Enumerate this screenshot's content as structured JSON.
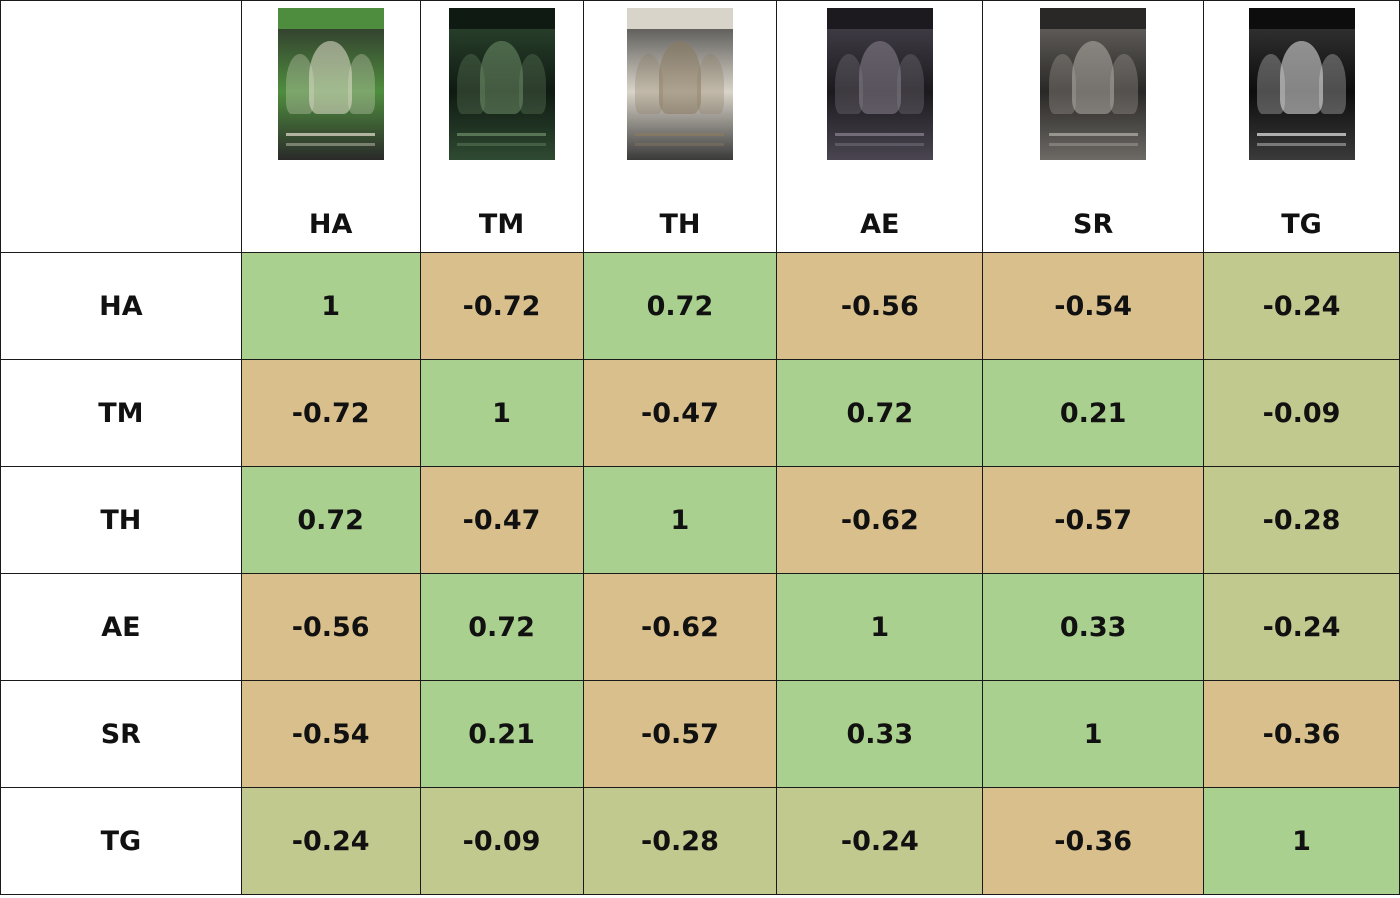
{
  "chart_data": {
    "type": "heatmap",
    "title": "",
    "labels": [
      "HA",
      "TM",
      "TH",
      "AE",
      "SR",
      "TG"
    ],
    "matrix": [
      [
        "1",
        "-0.72",
        "0.72",
        "-0.56",
        "-0.54",
        "-0.24"
      ],
      [
        "-0.72",
        "1",
        "-0.47",
        "0.72",
        "0.21",
        "-0.09"
      ],
      [
        "0.72",
        "-0.47",
        "1",
        "-0.62",
        "-0.57",
        "-0.28"
      ],
      [
        "-0.56",
        "0.72",
        "-0.62",
        "1",
        "0.33",
        "-0.24"
      ],
      [
        "-0.54",
        "0.21",
        "-0.57",
        "0.33",
        "1",
        "-0.36"
      ],
      [
        "-0.24",
        "-0.09",
        "-0.28",
        "-0.24",
        "-0.36",
        "1"
      ]
    ],
    "color_scale": {
      "positive": "#a9d08e",
      "negative": "#d9bf8c",
      "neutral": "#c2c98f"
    }
  },
  "posters": [
    {
      "icon": "home-alone-poster-icon",
      "colors": [
        "#4f8d3e",
        "#2a2a2a",
        "#e5e0d0"
      ],
      "text": "HOME ALONE"
    },
    {
      "icon": "the-matrix-poster-icon",
      "colors": [
        "#0f1a12",
        "#2f4a32",
        "#6f8f6a"
      ],
      "text": "MATRIX"
    },
    {
      "icon": "the-hangover-poster-icon",
      "colors": [
        "#d9d4c9",
        "#3a3a3a",
        "#8a7a60"
      ],
      "text": "HANGOVER"
    },
    {
      "icon": "avengers-endgame-poster-icon",
      "colors": [
        "#1c1a1e",
        "#4a4550",
        "#8a8490"
      ],
      "text": "AVENGERS"
    },
    {
      "icon": "shawshank-redemption-poster-icon",
      "colors": [
        "#2a2826",
        "#6d6a66",
        "#b5b0aa"
      ],
      "text": "SHAWSHANK"
    },
    {
      "icon": "the-godfather-poster-icon",
      "colors": [
        "#0d0d0d",
        "#3a3a3a",
        "#e8e8e8"
      ],
      "text": "The Godfather"
    }
  ]
}
